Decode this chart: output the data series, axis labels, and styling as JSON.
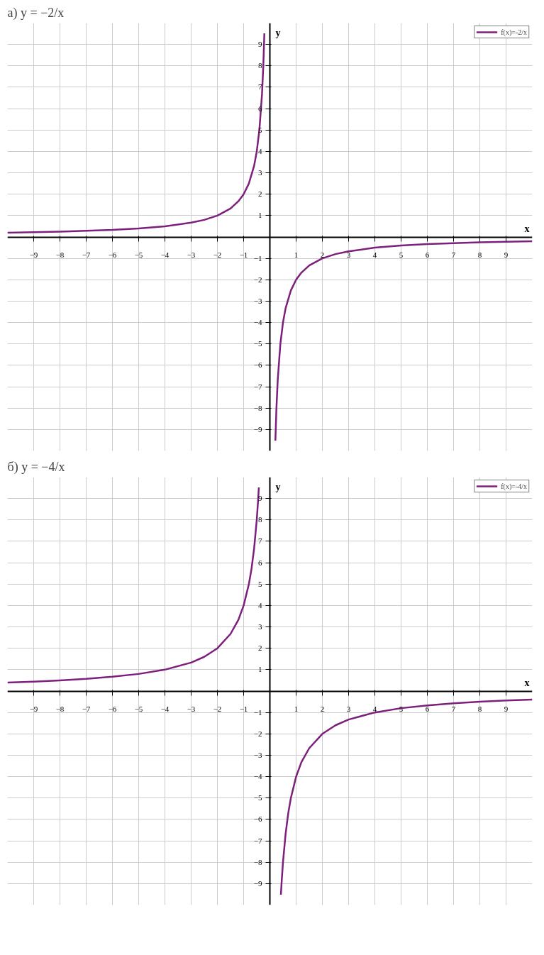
{
  "chart_data": [
    {
      "type": "line",
      "title": "а) y = −2/x",
      "xlabel": "x",
      "ylabel": "y",
      "xlim": [
        -10,
        10
      ],
      "ylim": [
        -10,
        10
      ],
      "xticks": [
        -9,
        -8,
        -7,
        -6,
        -5,
        -4,
        -3,
        -2,
        -1,
        1,
        2,
        3,
        4,
        5,
        6,
        7,
        8,
        9
      ],
      "yticks": [
        -9,
        -8,
        -7,
        -6,
        -5,
        -4,
        -3,
        -2,
        -1,
        1,
        2,
        3,
        4,
        5,
        6,
        7,
        8,
        9
      ],
      "grid": true,
      "legend": "top right",
      "marker": "none",
      "line_style": "solid",
      "series": [
        {
          "name": "f(x)=-2/x",
          "color": "#7d1f7d",
          "x": [
            -10,
            -9,
            -8,
            -7,
            -6,
            -5,
            -4,
            -3,
            -2.5,
            -2,
            -1.5,
            -1.2,
            -1,
            -0.8,
            -0.6,
            -0.5,
            -0.4,
            -0.3,
            -0.25,
            -0.21,
            null,
            0.21,
            0.25,
            0.3,
            0.4,
            0.5,
            0.6,
            0.8,
            1,
            1.2,
            1.5,
            2,
            2.5,
            3,
            4,
            5,
            6,
            7,
            8,
            9,
            10
          ],
          "values": [
            0.2,
            0.22,
            0.25,
            0.29,
            0.33,
            0.4,
            0.5,
            0.67,
            0.8,
            1,
            1.33,
            1.67,
            2,
            2.5,
            3.33,
            4,
            5,
            6.67,
            8,
            9.52,
            null,
            -9.52,
            -8,
            -6.67,
            -5,
            -4,
            -3.33,
            -2.5,
            -2,
            -1.67,
            -1.33,
            -1,
            -0.8,
            -0.67,
            -0.5,
            -0.4,
            -0.33,
            -0.29,
            -0.25,
            -0.22,
            -0.2
          ]
        }
      ]
    },
    {
      "type": "line",
      "title": "б) y = −4/x",
      "xlabel": "x",
      "ylabel": "y",
      "xlim": [
        -10,
        10
      ],
      "ylim": [
        -10,
        10
      ],
      "xticks": [
        -9,
        -8,
        -7,
        -6,
        -5,
        -4,
        -3,
        -2,
        -1,
        1,
        2,
        3,
        4,
        5,
        6,
        7,
        8,
        9
      ],
      "yticks": [
        -9,
        -8,
        -7,
        -6,
        -5,
        -4,
        -3,
        -2,
        -1,
        1,
        2,
        3,
        4,
        5,
        6,
        7,
        8,
        9
      ],
      "grid": true,
      "legend": "top right",
      "marker": "none",
      "line_style": "solid",
      "series": [
        {
          "name": "f(x)=-4/x",
          "color": "#7d1f7d",
          "x": [
            -10,
            -9,
            -8,
            -7,
            -6,
            -5,
            -4,
            -3,
            -2.5,
            -2,
            -1.5,
            -1.2,
            -1,
            -0.8,
            -0.7,
            -0.6,
            -0.5,
            -0.45,
            -0.42,
            null,
            0.42,
            0.45,
            0.5,
            0.6,
            0.7,
            0.8,
            1,
            1.2,
            1.5,
            2,
            2.5,
            3,
            4,
            5,
            6,
            7,
            8,
            9,
            10
          ],
          "values": [
            0.4,
            0.44,
            0.5,
            0.57,
            0.67,
            0.8,
            1,
            1.33,
            1.6,
            2,
            2.67,
            3.33,
            4,
            5,
            5.71,
            6.67,
            8,
            8.89,
            9.52,
            null,
            -9.52,
            -8.89,
            -8,
            -6.67,
            -5.71,
            -5,
            -4,
            -3.33,
            -2.67,
            -2,
            -1.6,
            -1.33,
            -1,
            -0.8,
            -0.67,
            -0.57,
            -0.5,
            -0.44,
            -0.4
          ]
        }
      ]
    }
  ]
}
